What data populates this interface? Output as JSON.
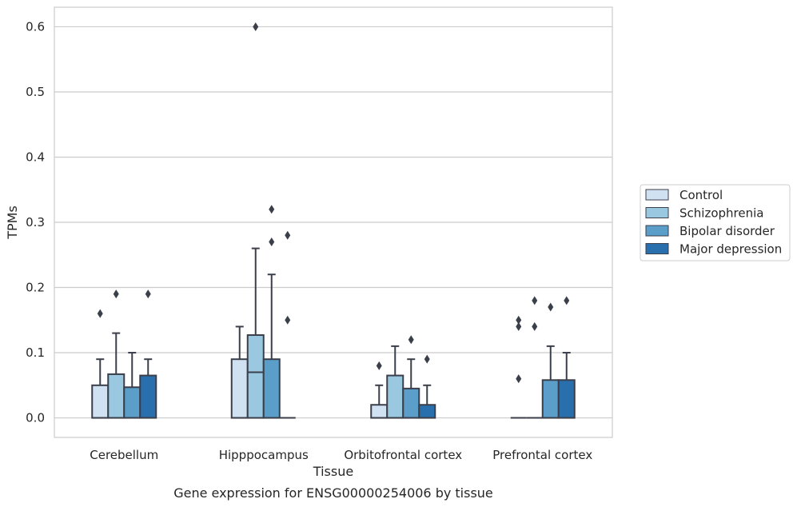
{
  "chart_data": {
    "type": "box",
    "xlabel": "Tissue",
    "ylabel": "TPMs",
    "caption": "Gene expression for ENSG00000254006 by tissue",
    "ylim": [
      -0.03,
      0.63
    ],
    "yticks": [
      0.0,
      0.1,
      0.2,
      0.3,
      0.4,
      0.5,
      0.6
    ],
    "ytick_labels": [
      "0.0",
      "0.1",
      "0.2",
      "0.3",
      "0.4",
      "0.5",
      "0.6"
    ],
    "grid": "horizontal",
    "legend_position": "right",
    "categories": [
      "Cerebellum",
      "Hipppocampus",
      "Orbitofrontal cortex",
      "Prefrontal cortex"
    ],
    "series": [
      {
        "name": "Control",
        "color": "#d0e1f2",
        "boxes": [
          {
            "q1": 0.0,
            "median": 0.0,
            "q3": 0.05,
            "whisker_low": 0.0,
            "whisker_high": 0.09,
            "outliers": [
              0.16
            ]
          },
          {
            "q1": 0.0,
            "median": 0.0,
            "q3": 0.09,
            "whisker_low": 0.0,
            "whisker_high": 0.14,
            "outliers": []
          },
          {
            "q1": 0.0,
            "median": 0.0,
            "q3": 0.02,
            "whisker_low": 0.0,
            "whisker_high": 0.05,
            "outliers": [
              0.08
            ]
          },
          {
            "q1": 0.0,
            "median": 0.0,
            "q3": 0.0,
            "whisker_low": 0.0,
            "whisker_high": 0.0,
            "outliers": [
              0.06,
              0.14,
              0.15
            ]
          }
        ]
      },
      {
        "name": "Schizophrenia",
        "color": "#9ac8e0",
        "boxes": [
          {
            "q1": 0.0,
            "median": 0.0,
            "q3": 0.067,
            "whisker_low": 0.0,
            "whisker_high": 0.13,
            "outliers": [
              0.19
            ]
          },
          {
            "q1": 0.0,
            "median": 0.07,
            "q3": 0.127,
            "whisker_low": 0.0,
            "whisker_high": 0.26,
            "outliers": [
              0.6
            ]
          },
          {
            "q1": 0.0,
            "median": 0.0,
            "q3": 0.065,
            "whisker_low": 0.0,
            "whisker_high": 0.11,
            "outliers": []
          },
          {
            "q1": 0.0,
            "median": 0.0,
            "q3": 0.0,
            "whisker_low": 0.0,
            "whisker_high": 0.0,
            "outliers": [
              0.14,
              0.18
            ]
          }
        ]
      },
      {
        "name": "Bipolar disorder",
        "color": "#5a9ec9",
        "boxes": [
          {
            "q1": 0.0,
            "median": 0.0,
            "q3": 0.047,
            "whisker_low": 0.0,
            "whisker_high": 0.1,
            "outliers": []
          },
          {
            "q1": 0.0,
            "median": 0.0,
            "q3": 0.09,
            "whisker_low": 0.0,
            "whisker_high": 0.22,
            "outliers": [
              0.27,
              0.32
            ]
          },
          {
            "q1": 0.0,
            "median": 0.0,
            "q3": 0.045,
            "whisker_low": 0.0,
            "whisker_high": 0.09,
            "outliers": [
              0.12
            ]
          },
          {
            "q1": 0.0,
            "median": 0.0,
            "q3": 0.058,
            "whisker_low": 0.0,
            "whisker_high": 0.11,
            "outliers": [
              0.17
            ]
          }
        ]
      },
      {
        "name": "Major depression",
        "color": "#2a6fad",
        "boxes": [
          {
            "q1": 0.0,
            "median": 0.0,
            "q3": 0.065,
            "whisker_low": 0.0,
            "whisker_high": 0.09,
            "outliers": [
              0.19
            ]
          },
          {
            "q1": 0.0,
            "median": 0.0,
            "q3": 0.0,
            "whisker_low": 0.0,
            "whisker_high": 0.0,
            "outliers": [
              0.15,
              0.28
            ]
          },
          {
            "q1": 0.0,
            "median": 0.0,
            "q3": 0.02,
            "whisker_low": 0.0,
            "whisker_high": 0.05,
            "outliers": [
              0.09
            ]
          },
          {
            "q1": 0.0,
            "median": 0.0,
            "q3": 0.058,
            "whisker_low": 0.0,
            "whisker_high": 0.1,
            "outliers": [
              0.18
            ]
          }
        ]
      }
    ],
    "colors": {
      "grid": "#cccccc",
      "frame": "#cccccc",
      "box_edge": "#3b3f4a",
      "text": "#262626"
    }
  }
}
